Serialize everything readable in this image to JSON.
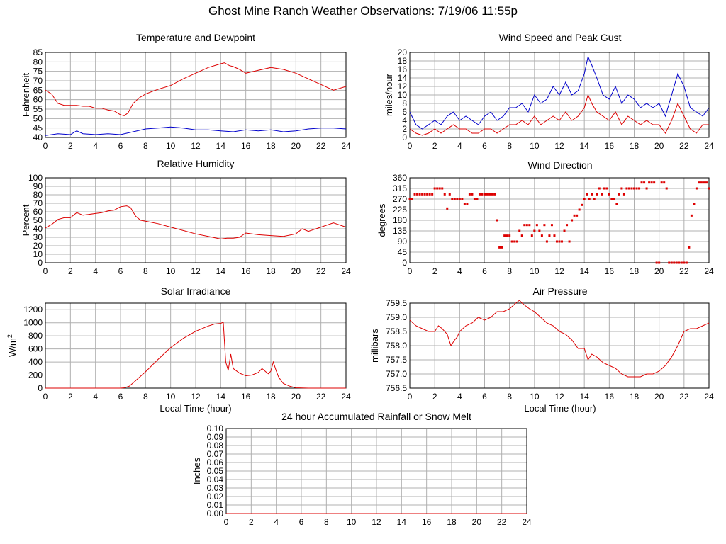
{
  "page": {
    "title": "Ghost Mine Ranch Weather Observations: 7/19/06 11:55p"
  },
  "colors": {
    "red": "#dd0000",
    "blue": "#0000cc",
    "grid": "#b0b0b0",
    "axis": "#000000"
  },
  "chart_data": [
    {
      "id": "temp",
      "type": "line",
      "title": "Temperature and Dewpoint",
      "xlabel": "",
      "ylabel": "Fahrenheit",
      "xlim": [
        0,
        24
      ],
      "ylim": [
        40,
        85
      ],
      "xticks": [
        0,
        2,
        4,
        6,
        8,
        10,
        12,
        14,
        16,
        18,
        20,
        22,
        24
      ],
      "yticks": [
        40,
        45,
        50,
        55,
        60,
        65,
        70,
        75,
        80,
        85
      ],
      "grid": true,
      "series": [
        {
          "color": "#dd0000",
          "x": [
            0,
            0.5,
            1,
            1.5,
            2,
            2.5,
            3,
            3.5,
            4,
            4.5,
            5,
            5.5,
            6,
            6.3,
            6.6,
            7,
            7.5,
            8,
            9,
            10,
            11,
            12,
            13,
            14,
            14.3,
            14.7,
            15,
            15.5,
            16,
            17,
            18,
            19,
            20,
            21,
            22,
            23,
            24
          ],
          "y": [
            65,
            63,
            58,
            57,
            57,
            57,
            56.5,
            56.5,
            55.5,
            55.5,
            54.5,
            54,
            52,
            51.5,
            53,
            58,
            61,
            63,
            65.5,
            67.5,
            71,
            74,
            77,
            79,
            79.5,
            78,
            77.5,
            76,
            74,
            75.5,
            77,
            76,
            74,
            71,
            68,
            65,
            67
          ]
        },
        {
          "color": "#0000cc",
          "x": [
            0,
            1,
            2,
            2.5,
            3,
            4,
            5,
            6,
            7,
            8,
            9,
            10,
            11,
            12,
            13,
            14,
            15,
            16,
            17,
            18,
            19,
            20,
            21,
            22,
            23,
            24
          ],
          "y": [
            41,
            42,
            41.5,
            43.5,
            42,
            41.5,
            42,
            41.5,
            43,
            44.5,
            45,
            45.5,
            45,
            44,
            44,
            43.5,
            43,
            44,
            43.5,
            44,
            43,
            43.5,
            44.5,
            45,
            45,
            44.5
          ]
        }
      ]
    },
    {
      "id": "wind",
      "type": "line",
      "title": "Wind Speed and Peak Gust",
      "xlabel": "",
      "ylabel": "miles/hour",
      "xlim": [
        0,
        24
      ],
      "ylim": [
        0,
        20
      ],
      "xticks": [
        0,
        2,
        4,
        6,
        8,
        10,
        12,
        14,
        16,
        18,
        20,
        22,
        24
      ],
      "yticks": [
        0,
        2,
        4,
        6,
        8,
        10,
        12,
        14,
        16,
        18,
        20
      ],
      "grid": true,
      "series": [
        {
          "color": "#0000cc",
          "x": [
            0,
            0.5,
            1,
            1.5,
            2,
            2.5,
            3,
            3.5,
            4,
            4.5,
            5,
            5.5,
            6,
            6.5,
            7,
            7.5,
            8,
            8.5,
            9,
            9.5,
            10,
            10.5,
            11,
            11.5,
            12,
            12.5,
            13,
            13.5,
            14,
            14.3,
            14.6,
            15,
            15.5,
            16,
            16.5,
            17,
            17.5,
            18,
            18.5,
            19,
            19.5,
            20,
            20.5,
            21,
            21.5,
            22,
            22.5,
            23,
            23.5,
            24
          ],
          "y": [
            6,
            3,
            2,
            3,
            4,
            3,
            5,
            6,
            4,
            5,
            4,
            3,
            5,
            6,
            4,
            5,
            7,
            7,
            8,
            6,
            10,
            8,
            9,
            12,
            10,
            13,
            10,
            11,
            15,
            19,
            17,
            14,
            10,
            9,
            12,
            8,
            10,
            9,
            7,
            8,
            7,
            8,
            5,
            10,
            15,
            12,
            7,
            6,
            5,
            7
          ]
        },
        {
          "color": "#dd0000",
          "x": [
            0,
            0.5,
            1,
            1.5,
            2,
            2.5,
            3,
            3.5,
            4,
            4.5,
            5,
            5.5,
            6,
            6.5,
            7,
            7.5,
            8,
            8.5,
            9,
            9.5,
            10,
            10.5,
            11,
            11.5,
            12,
            12.5,
            13,
            13.5,
            14,
            14.3,
            14.6,
            15,
            15.5,
            16,
            16.5,
            17,
            17.5,
            18,
            18.5,
            19,
            19.5,
            20,
            20.5,
            21,
            21.5,
            22,
            22.5,
            23,
            23.5,
            24
          ],
          "y": [
            2,
            1,
            0.5,
            1,
            2,
            1,
            2,
            3,
            2,
            2,
            1,
            1,
            2,
            2,
            1,
            2,
            3,
            3,
            4,
            3,
            5,
            3,
            4,
            5,
            4,
            6,
            4,
            5,
            7,
            10,
            8,
            6,
            5,
            4,
            6,
            3,
            5,
            4,
            3,
            4,
            3,
            3,
            1,
            4,
            8,
            5,
            2,
            1,
            3,
            3
          ]
        }
      ]
    },
    {
      "id": "rh",
      "type": "line",
      "title": "Relative Humidity",
      "xlabel": "",
      "ylabel": "Percent",
      "xlim": [
        0,
        24
      ],
      "ylim": [
        0,
        100
      ],
      "xticks": [
        0,
        2,
        4,
        6,
        8,
        10,
        12,
        14,
        16,
        18,
        20,
        22,
        24
      ],
      "yticks": [
        0,
        10,
        20,
        30,
        40,
        50,
        60,
        70,
        80,
        90,
        100
      ],
      "grid": true,
      "series": [
        {
          "color": "#dd0000",
          "x": [
            0,
            0.5,
            1,
            1.5,
            2,
            2.5,
            3,
            3.5,
            4,
            4.5,
            5,
            5.5,
            6,
            6.5,
            6.8,
            7.2,
            7.6,
            8,
            9,
            10,
            11,
            12,
            13,
            14,
            14.5,
            15,
            15.5,
            16,
            17,
            18,
            19,
            20,
            20.5,
            21,
            22,
            23,
            24
          ],
          "y": [
            41,
            45,
            51,
            53,
            53,
            59,
            56,
            57,
            58,
            59,
            61,
            62,
            66,
            67,
            65,
            55,
            50,
            49,
            46,
            42,
            38,
            34,
            31,
            28,
            29,
            29,
            30,
            35,
            33,
            32,
            31,
            34,
            40,
            37,
            42,
            47,
            42
          ]
        }
      ]
    },
    {
      "id": "wdir",
      "type": "scatter",
      "title": "Wind Direction",
      "xlabel": "",
      "ylabel": "degrees",
      "xlim": [
        0,
        24
      ],
      "ylim": [
        0,
        360
      ],
      "xticks": [
        0,
        2,
        4,
        6,
        8,
        10,
        12,
        14,
        16,
        18,
        20,
        22,
        24
      ],
      "yticks": [
        0,
        45,
        90,
        135,
        180,
        225,
        270,
        315,
        360
      ],
      "grid": true,
      "series": [
        {
          "color": "#dd0000",
          "x": [
            0,
            0.2,
            0.4,
            0.6,
            0.8,
            1,
            1.2,
            1.4,
            1.6,
            1.8,
            2,
            2.2,
            2.4,
            2.6,
            2.8,
            3,
            3.2,
            3.4,
            3.6,
            3.8,
            4,
            4.2,
            4.4,
            4.6,
            4.8,
            5,
            5.2,
            5.4,
            5.6,
            5.8,
            6,
            6.2,
            6.4,
            6.6,
            6.8,
            7,
            7.2,
            7.4,
            7.6,
            7.8,
            8,
            8.2,
            8.4,
            8.6,
            8.8,
            9,
            9.2,
            9.4,
            9.6,
            9.8,
            10,
            10.2,
            10.4,
            10.6,
            10.8,
            11,
            11.2,
            11.4,
            11.6,
            11.8,
            12,
            12.2,
            12.4,
            12.6,
            12.8,
            13,
            13.2,
            13.4,
            13.6,
            13.8,
            14,
            14.2,
            14.4,
            14.6,
            14.8,
            15,
            15.2,
            15.4,
            15.6,
            15.8,
            16,
            16.2,
            16.4,
            16.6,
            16.8,
            17,
            17.2,
            17.4,
            17.6,
            17.8,
            18,
            18.2,
            18.4,
            18.6,
            18.8,
            19,
            19.2,
            19.4,
            19.6,
            19.8,
            20,
            20.2,
            20.4,
            20.6,
            20.8,
            21,
            21.2,
            21.4,
            21.6,
            21.8,
            22,
            22.2,
            22.4,
            22.6,
            22.8,
            23,
            23.2,
            23.4,
            23.6,
            23.8,
            24
          ],
          "y": [
            270,
            270,
            290,
            290,
            290,
            290,
            290,
            290,
            290,
            290,
            315,
            315,
            315,
            315,
            290,
            230,
            290,
            270,
            270,
            270,
            270,
            270,
            250,
            250,
            290,
            290,
            270,
            270,
            290,
            290,
            290,
            290,
            290,
            290,
            290,
            180,
            65,
            65,
            115,
            115,
            115,
            90,
            90,
            90,
            135,
            115,
            160,
            160,
            160,
            115,
            135,
            160,
            135,
            115,
            160,
            90,
            115,
            160,
            115,
            90,
            90,
            90,
            135,
            160,
            90,
            180,
            200,
            200,
            225,
            245,
            270,
            290,
            270,
            290,
            270,
            290,
            315,
            290,
            315,
            315,
            290,
            270,
            270,
            250,
            290,
            315,
            290,
            315,
            315,
            315,
            315,
            315,
            315,
            340,
            340,
            315,
            340,
            340,
            340,
            0,
            0,
            340,
            340,
            315,
            0,
            0,
            0,
            0,
            0,
            0,
            0,
            0,
            65,
            200,
            250,
            315,
            340,
            340,
            340,
            340,
            315
          ]
        }
      ]
    },
    {
      "id": "solar",
      "type": "line",
      "title": "Solar Irradiance",
      "xlabel": "Local Time (hour)",
      "ylabel": "W/m",
      "ylabel_sup": "2",
      "xlim": [
        0,
        24
      ],
      "ylim": [
        0,
        1300
      ],
      "xticks": [
        0,
        2,
        4,
        6,
        8,
        10,
        12,
        14,
        16,
        18,
        20,
        22,
        24
      ],
      "yticks": [
        0,
        200,
        400,
        600,
        800,
        1000,
        1200
      ],
      "grid": true,
      "series": [
        {
          "color": "#dd0000",
          "x": [
            0,
            2,
            4,
            6,
            6.3,
            6.7,
            7,
            8,
            9,
            10,
            11,
            12,
            13,
            13.5,
            14,
            14.2,
            14.4,
            14.6,
            14.8,
            15,
            15.5,
            16,
            16.5,
            17,
            17.3,
            17.6,
            17.8,
            18,
            18.2,
            18.4,
            18.6,
            18.8,
            19,
            19.5,
            20,
            21,
            22,
            24
          ],
          "y": [
            0,
            0,
            0,
            0,
            5,
            30,
            80,
            250,
            440,
            620,
            760,
            870,
            950,
            980,
            990,
            1010,
            400,
            270,
            520,
            300,
            230,
            190,
            200,
            240,
            300,
            250,
            220,
            260,
            400,
            280,
            180,
            120,
            70,
            30,
            5,
            0,
            0,
            0
          ]
        }
      ]
    },
    {
      "id": "press",
      "type": "line",
      "title": "Air Pressure",
      "xlabel": "Local Time (hour)",
      "ylabel": "millibars",
      "xlim": [
        0,
        24
      ],
      "ylim": [
        756.5,
        759.5
      ],
      "xticks": [
        0,
        2,
        4,
        6,
        8,
        10,
        12,
        14,
        16,
        18,
        20,
        22,
        24
      ],
      "yticks": [
        756.5,
        757.0,
        757.5,
        758.0,
        758.5,
        759.0,
        759.5
      ],
      "ytick_labels": [
        "756.5",
        "757.0",
        "757.5",
        "758.0",
        "758.5",
        "759.0",
        "759.5"
      ],
      "grid": true,
      "series": [
        {
          "color": "#dd0000",
          "x": [
            0,
            0.5,
            1,
            1.5,
            2,
            2.3,
            2.6,
            3,
            3.3,
            3.6,
            3.8,
            4,
            4.5,
            5,
            5.5,
            6,
            6.5,
            7,
            7.5,
            8,
            8.5,
            8.8,
            9,
            9.3,
            9.6,
            10,
            10.5,
            11,
            11.5,
            12,
            12.5,
            13,
            13.5,
            14,
            14.3,
            14.6,
            15,
            15.5,
            16,
            16.5,
            17,
            17.5,
            18,
            18.5,
            19,
            19.5,
            20,
            20.5,
            21,
            21.5,
            22,
            22.5,
            23,
            23.5,
            24
          ],
          "y": [
            758.9,
            758.7,
            758.6,
            758.5,
            758.5,
            758.7,
            758.6,
            758.4,
            758.0,
            758.2,
            758.3,
            758.5,
            758.7,
            758.8,
            759.0,
            758.9,
            759.0,
            759.2,
            759.2,
            759.3,
            759.5,
            759.6,
            759.5,
            759.4,
            759.3,
            759.2,
            759.0,
            758.8,
            758.7,
            758.5,
            758.4,
            758.2,
            757.9,
            757.9,
            757.5,
            757.7,
            757.6,
            757.4,
            757.3,
            757.2,
            757.0,
            756.9,
            756.9,
            756.9,
            757.0,
            757.0,
            757.1,
            757.3,
            757.6,
            758.0,
            758.5,
            758.6,
            758.6,
            758.7,
            758.8
          ]
        }
      ]
    },
    {
      "id": "rain",
      "type": "line",
      "title": "24 hour Accumulated Rainfall or Snow Melt",
      "xlabel": "",
      "ylabel": "Inches",
      "xlim": [
        0,
        24
      ],
      "ylim": [
        0,
        0.1
      ],
      "xticks": [
        0,
        2,
        4,
        6,
        8,
        10,
        12,
        14,
        16,
        18,
        20,
        22,
        24
      ],
      "yticks": [
        0,
        0.01,
        0.02,
        0.03,
        0.04,
        0.05,
        0.06,
        0.07,
        0.08,
        0.09,
        0.1
      ],
      "ytick_labels": [
        "0.00",
        "0.01",
        "0.02",
        "0.03",
        "0.04",
        "0.05",
        "0.06",
        "0.07",
        "0.08",
        "0.09",
        "0.10"
      ],
      "grid": true,
      "series": [
        {
          "color": "#dd0000",
          "x": [
            0,
            24
          ],
          "y": [
            0,
            0
          ]
        }
      ]
    }
  ]
}
